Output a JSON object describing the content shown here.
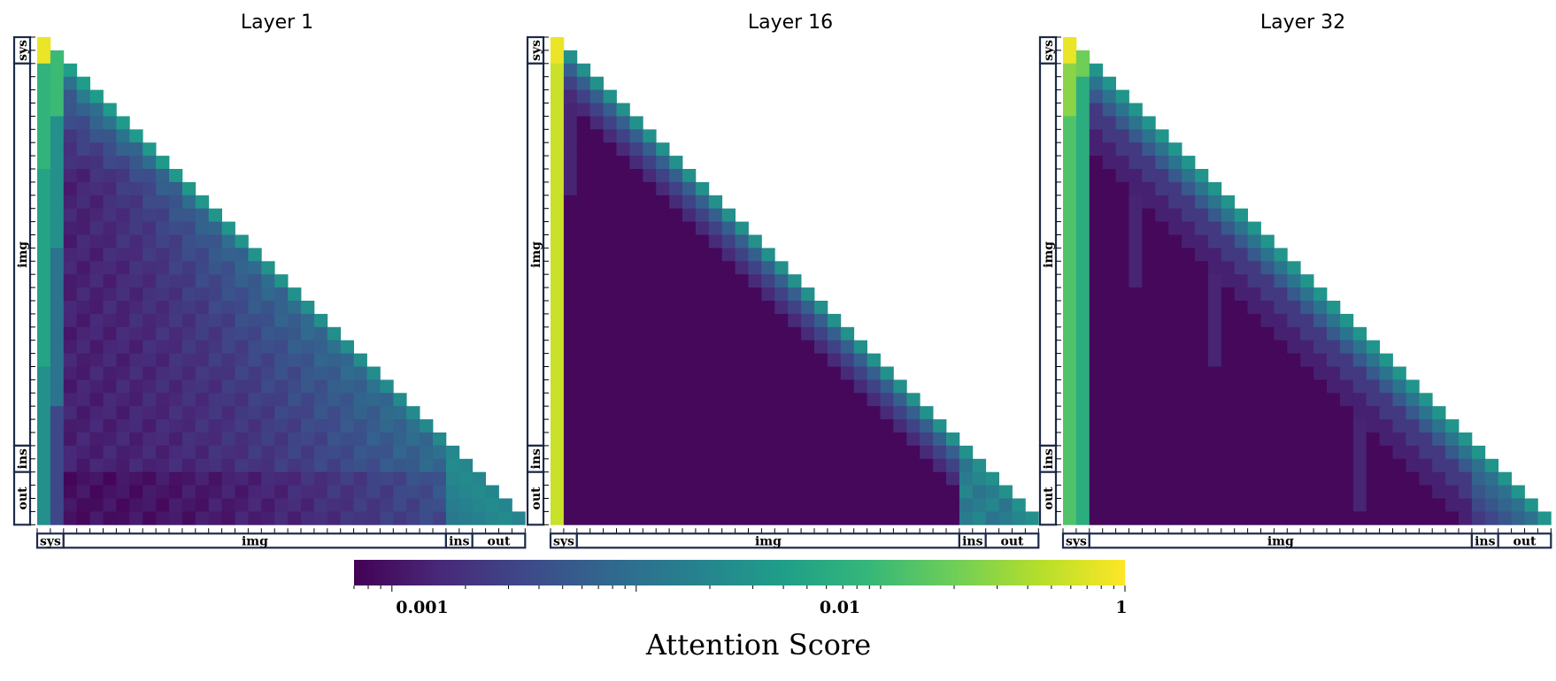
{
  "chart_data": [
    {
      "type": "heatmap",
      "title": "Layer 1",
      "segments": [
        "sys",
        "img",
        "ins",
        "out"
      ],
      "profile": "layer1"
    },
    {
      "type": "heatmap",
      "title": "Layer 16",
      "segments": [
        "sys",
        "img",
        "ins",
        "out"
      ],
      "profile": "layer16"
    },
    {
      "type": "heatmap",
      "title": "Layer 32",
      "segments": [
        "sys",
        "img",
        "ins",
        "out"
      ],
      "profile": "layer32"
    }
  ],
  "colorbar": {
    "label": "Attention Score",
    "scale": "log",
    "range": [
      0.0007,
      1
    ],
    "tick_labels": [
      "0.001",
      "0.01",
      "1"
    ],
    "tick_values": [
      0.001,
      0.01,
      1
    ],
    "colormap": "viridis",
    "colors": [
      "#440154",
      "#482878",
      "#3e4989",
      "#31688e",
      "#26828e",
      "#1f9e89",
      "#35b779",
      "#6ece58",
      "#b5de2b",
      "#fde725"
    ]
  },
  "segment_box_color": "#1c2a4a"
}
